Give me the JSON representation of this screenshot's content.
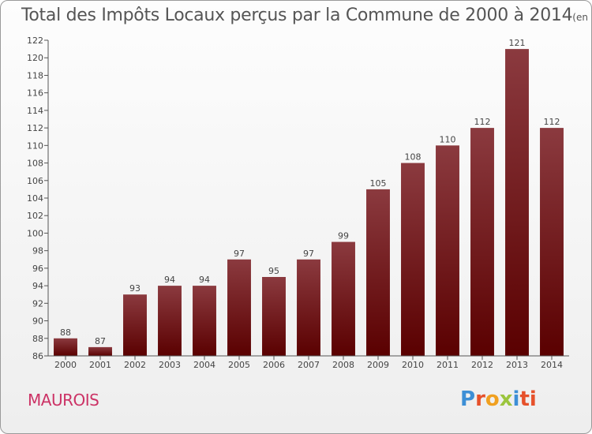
{
  "chart_data": {
    "type": "bar",
    "title": "Total des Impôts Locaux perçus par la Commune de 2000 à 2014",
    "unit_note": "(en milliers d'€)",
    "categories": [
      "2000",
      "2001",
      "2002",
      "2003",
      "2004",
      "2005",
      "2006",
      "2007",
      "2008",
      "2009",
      "2010",
      "2011",
      "2012",
      "2013",
      "2014"
    ],
    "values": [
      88,
      87,
      93,
      94,
      94,
      97,
      95,
      97,
      99,
      105,
      108,
      110,
      112,
      121,
      112
    ],
    "ylim": [
      86,
      122
    ],
    "ytick_step": 2,
    "xlabel": "",
    "ylabel": "",
    "bar_color_top": "#8b3a3f",
    "bar_color_bottom": "#5a0000"
  },
  "commune": "MAUROIS",
  "logo": {
    "letters": [
      "P",
      "r",
      "o",
      "x",
      "i",
      "ti"
    ]
  }
}
